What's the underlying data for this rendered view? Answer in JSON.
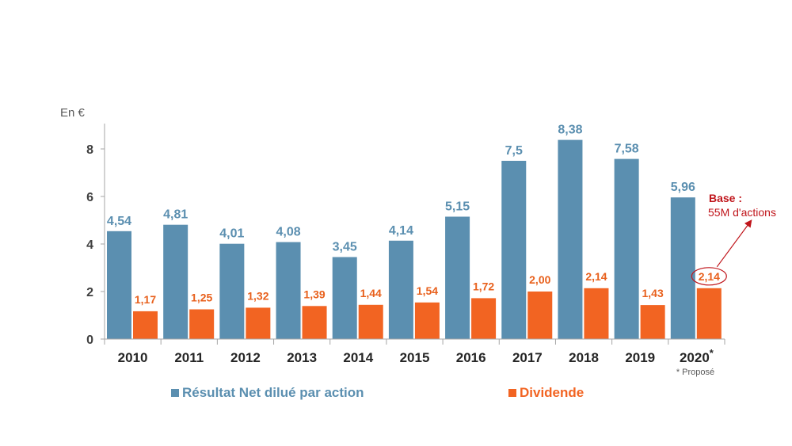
{
  "chart_data": {
    "type": "bar",
    "unit_label": "En  €",
    "categories": [
      "2010",
      "2011",
      "2012",
      "2013",
      "2014",
      "2015",
      "2016",
      "2017",
      "2018",
      "2019",
      "2020"
    ],
    "last_category_marker": "*",
    "footnote": "* Proposé",
    "ylim": [
      0,
      8.8
    ],
    "yticks": [
      0,
      2,
      4,
      6,
      8
    ],
    "series": [
      {
        "name": "Résultat Net dilué par action",
        "color": "#5B8FB0",
        "label_color": "#5B8FB0",
        "values": [
          4.54,
          4.81,
          4.01,
          4.08,
          3.45,
          4.14,
          5.15,
          7.5,
          8.38,
          7.58,
          5.96
        ],
        "labels": [
          "4,54",
          "4,81",
          "4,01",
          "4,08",
          "3,45",
          "4,14",
          "5,15",
          "7,5",
          "8,38",
          "7,58",
          "5,96"
        ]
      },
      {
        "name": "Dividende",
        "color": "#F26422",
        "label_color": "#E8601C",
        "values": [
          1.17,
          1.25,
          1.32,
          1.39,
          1.44,
          1.54,
          1.72,
          2.0,
          2.14,
          1.43,
          2.14
        ],
        "labels": [
          "1,17",
          "1,25",
          "1,32",
          "1,39",
          "1,44",
          "1,54",
          "1,72",
          "2,00",
          "2,14",
          "1,43",
          "2,14"
        ]
      }
    ],
    "annotation": {
      "title": "Base :",
      "subtitle": "55M d'actions",
      "color": "#C0151B",
      "target_category": "2020",
      "target_series": "Dividende"
    }
  }
}
